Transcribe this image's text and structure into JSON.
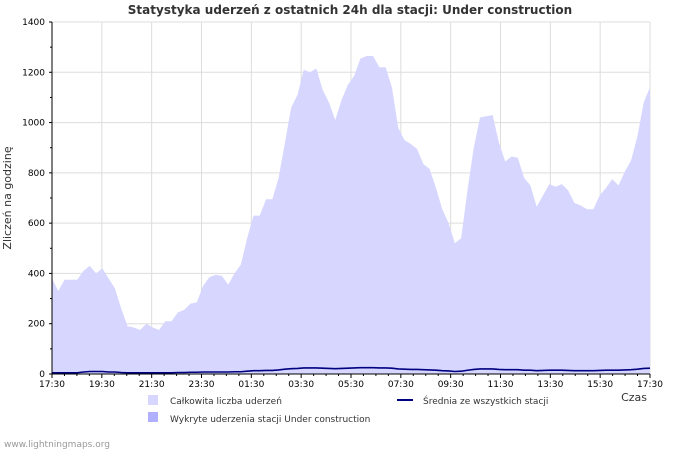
{
  "chart_data": {
    "type": "area",
    "title": "Statystyka uderzeń z ostatnich 24h dla stacji: Under construction",
    "xlabel": "Czas",
    "ylabel": "Zliczeń na godzinę",
    "ylim": [
      0,
      1400
    ],
    "y_ticks": [
      0,
      200,
      400,
      600,
      800,
      1000,
      1200,
      1400
    ],
    "x_tick_labels": [
      "17:30",
      "19:30",
      "21:30",
      "23:30",
      "01:30",
      "03:30",
      "05:30",
      "07:30",
      "09:30",
      "11:30",
      "13:30",
      "15:30",
      "17:30"
    ],
    "grid": true,
    "legend_position": "bottom",
    "x_step_minutes": 15,
    "series": [
      {
        "name": "Całkowita liczba uderzeń",
        "kind": "area",
        "color": "#d6d6ff",
        "values": [
          380,
          330,
          375,
          375,
          375,
          410,
          430,
          400,
          420,
          380,
          340,
          260,
          190,
          185,
          175,
          200,
          185,
          175,
          210,
          210,
          245,
          255,
          280,
          285,
          350,
          385,
          395,
          390,
          355,
          400,
          435,
          540,
          630,
          630,
          695,
          695,
          780,
          920,
          1060,
          1110,
          1210,
          1200,
          1215,
          1130,
          1080,
          1010,
          1090,
          1150,
          1185,
          1255,
          1265,
          1265,
          1220,
          1220,
          1140,
          980,
          930,
          915,
          895,
          835,
          815,
          740,
          655,
          600,
          520,
          540,
          730,
          900,
          1020,
          1025,
          1030,
          920,
          845,
          865,
          860,
          780,
          750,
          665,
          710,
          755,
          745,
          755,
          730,
          680,
          670,
          655,
          655,
          710,
          740,
          775,
          750,
          805,
          850,
          945,
          1080,
          1140
        ]
      },
      {
        "name": "Wykryte uderzenia stacji Under construction",
        "kind": "area",
        "color": "#b0b0ff",
        "values": [
          0,
          0,
          0,
          0,
          0,
          0,
          0,
          0,
          0,
          0,
          0,
          0,
          0,
          0,
          0,
          0,
          0,
          0,
          0,
          0,
          0,
          0,
          0,
          0,
          0,
          0,
          0,
          0,
          0,
          0,
          0,
          0,
          0,
          0,
          0,
          0,
          0,
          0,
          0,
          0,
          0,
          0,
          0,
          0,
          0,
          0,
          0,
          0,
          0,
          0,
          0,
          0,
          0,
          0,
          0,
          0,
          0,
          0,
          0,
          0,
          0,
          0,
          0,
          0,
          0,
          0,
          0,
          0,
          0,
          0,
          0,
          0,
          0,
          0,
          0,
          0,
          0,
          0,
          0,
          0,
          0,
          0,
          0,
          0,
          0,
          0,
          0,
          0,
          0,
          0,
          0,
          0,
          0,
          0,
          0,
          0
        ]
      },
      {
        "name": "Średnia ze wszystkich stacji",
        "kind": "line",
        "color": "#000080",
        "values": [
          5,
          5,
          5,
          5,
          5,
          8,
          10,
          10,
          10,
          8,
          8,
          6,
          5,
          5,
          5,
          5,
          5,
          5,
          5,
          5,
          6,
          6,
          7,
          7,
          8,
          8,
          8,
          8,
          8,
          9,
          9,
          11,
          13,
          13,
          14,
          14,
          16,
          19,
          21,
          22,
          24,
          24,
          24,
          23,
          22,
          21,
          22,
          23,
          24,
          25,
          25,
          25,
          24,
          24,
          23,
          20,
          19,
          18,
          18,
          17,
          16,
          15,
          13,
          12,
          10,
          11,
          15,
          18,
          20,
          20,
          20,
          18,
          17,
          17,
          17,
          15,
          15,
          13,
          14,
          15,
          15,
          15,
          14,
          13,
          13,
          13,
          13,
          14,
          15,
          15,
          15,
          16,
          17,
          19,
          22,
          23
        ]
      }
    ]
  },
  "footer": {
    "source": "www.lightningmaps.org"
  }
}
